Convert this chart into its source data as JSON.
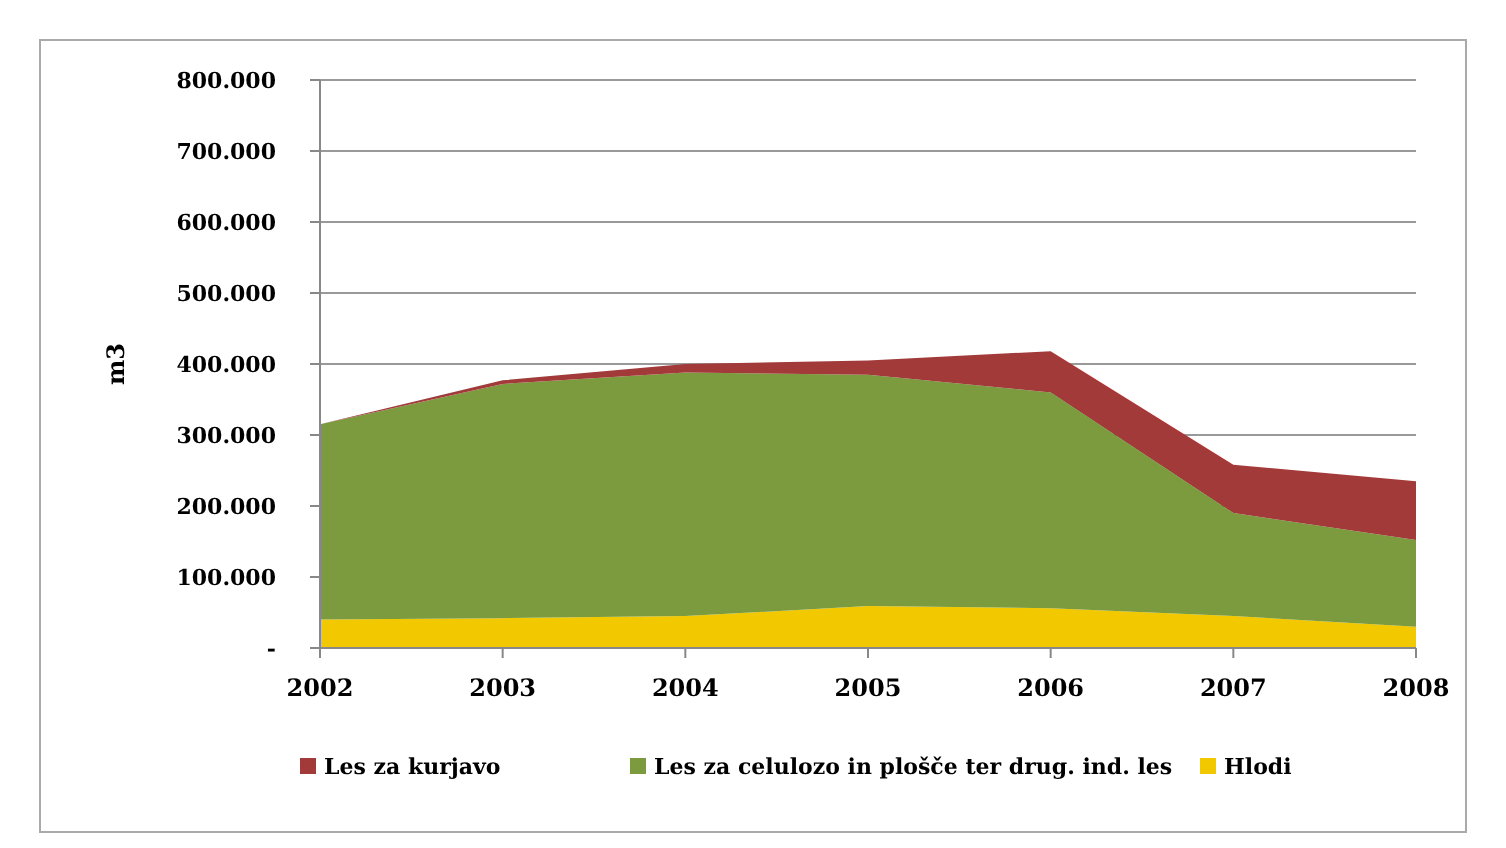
{
  "chart_data": {
    "type": "area",
    "stacked": true,
    "ylabel": "m3",
    "categories": [
      "2002",
      "2003",
      "2004",
      "2005",
      "2006",
      "2007",
      "2008"
    ],
    "series": [
      {
        "name": "Hlodi",
        "color": "#f2c800",
        "values": [
          40000,
          42000,
          45000,
          59000,
          56000,
          45000,
          30000
        ]
      },
      {
        "name": "Les za celulozo in plošče ter drug. ind. les",
        "color": "#7b9b3e",
        "values": [
          275000,
          330000,
          343000,
          326000,
          304000,
          145000,
          122000
        ]
      },
      {
        "name": "Les za kurjavo",
        "color": "#a23a3a",
        "values": [
          0,
          5000,
          12000,
          20000,
          58000,
          68000,
          83000
        ]
      }
    ],
    "ylim": [
      0,
      800000
    ],
    "yticks": [
      {
        "value": 0,
        "label": "-"
      },
      {
        "value": 100000,
        "label": "100.000"
      },
      {
        "value": 200000,
        "label": "200.000"
      },
      {
        "value": 300000,
        "label": "300.000"
      },
      {
        "value": 400000,
        "label": "400.000"
      },
      {
        "value": 500000,
        "label": "500.000"
      },
      {
        "value": 600000,
        "label": "600.000"
      },
      {
        "value": 700000,
        "label": "700.000"
      },
      {
        "value": 800000,
        "label": "800.000"
      }
    ],
    "grid": "y",
    "legend": "bottom"
  }
}
